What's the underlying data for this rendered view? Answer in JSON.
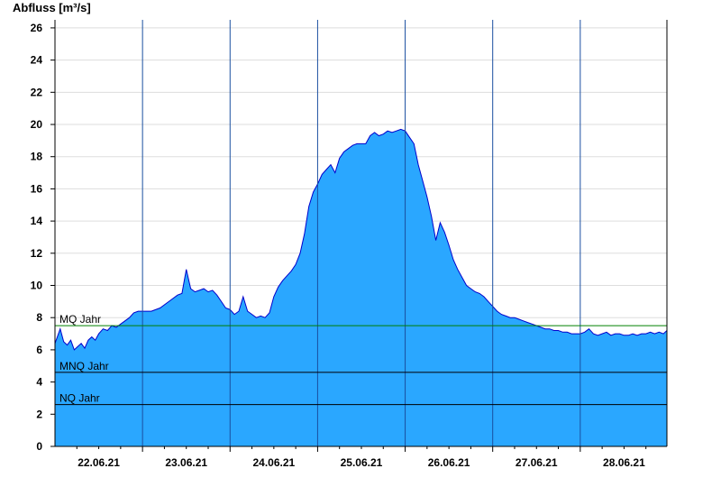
{
  "chart_data": {
    "type": "area",
    "ylabel": "Abfluss [m³/s]",
    "ylim": [
      0,
      26.5
    ],
    "yticks": [
      0,
      2,
      4,
      6,
      8,
      10,
      12,
      14,
      16,
      18,
      20,
      22,
      24,
      26
    ],
    "xlim": [
      0,
      6.99
    ],
    "day_labels": [
      "22.06.21",
      "23.06.21",
      "24.06.21",
      "25.06.21",
      "26.06.21",
      "27.06.21",
      "28.06.21"
    ],
    "grid": true,
    "colors": {
      "fill": "#2aa7ff",
      "line": "#0000cc",
      "mq": "#008000",
      "ref": "#000000",
      "grid": "#dddddd",
      "divider": "#1a4fa0"
    },
    "reference_lines": [
      {
        "name": "MQ Jahr",
        "value": 7.5,
        "color": "#008000"
      },
      {
        "name": "MNQ Jahr",
        "value": 4.6,
        "color": "#000000"
      },
      {
        "name": "NQ Jahr",
        "value": 2.6,
        "color": "#000000"
      }
    ],
    "series": [
      {
        "x": [
          0.0,
          0.06,
          0.1,
          0.14,
          0.18,
          0.22,
          0.26,
          0.3,
          0.34,
          0.38,
          0.42,
          0.46,
          0.5,
          0.55,
          0.6,
          0.65,
          0.7,
          0.75,
          0.8,
          0.85,
          0.9,
          0.95,
          1.0,
          1.1,
          1.2,
          1.3,
          1.4,
          1.45,
          1.5,
          1.55,
          1.6,
          1.65,
          1.7,
          1.75,
          1.8,
          1.85,
          1.9,
          1.95,
          2.0,
          2.05,
          2.1,
          2.15,
          2.2,
          2.25,
          2.3,
          2.35,
          2.4,
          2.45,
          2.5,
          2.55,
          2.6,
          2.65,
          2.7,
          2.75,
          2.8,
          2.85,
          2.9,
          2.95,
          3.0,
          3.05,
          3.1,
          3.15,
          3.2,
          3.25,
          3.3,
          3.35,
          3.4,
          3.45,
          3.5,
          3.55,
          3.6,
          3.65,
          3.7,
          3.75,
          3.8,
          3.85,
          3.9,
          3.95,
          4.0,
          4.05,
          4.1,
          4.15,
          4.2,
          4.25,
          4.3,
          4.35,
          4.4,
          4.45,
          4.5,
          4.55,
          4.6,
          4.65,
          4.7,
          4.75,
          4.8,
          4.85,
          4.9,
          4.95,
          5.0,
          5.05,
          5.1,
          5.15,
          5.2,
          5.25,
          5.3,
          5.35,
          5.4,
          5.45,
          5.5,
          5.55,
          5.6,
          5.65,
          5.7,
          5.75,
          5.8,
          5.85,
          5.9,
          5.95,
          6.0,
          6.05,
          6.1,
          6.15,
          6.2,
          6.25,
          6.3,
          6.35,
          6.4,
          6.45,
          6.5,
          6.55,
          6.6,
          6.65,
          6.7,
          6.75,
          6.8,
          6.85,
          6.9,
          6.95,
          6.99
        ],
        "values": [
          6.4,
          7.3,
          6.5,
          6.3,
          6.6,
          6.0,
          6.2,
          6.4,
          6.1,
          6.6,
          6.8,
          6.6,
          7.0,
          7.3,
          7.2,
          7.5,
          7.4,
          7.6,
          7.8,
          8.0,
          8.3,
          8.4,
          8.4,
          8.4,
          8.6,
          9.0,
          9.4,
          9.5,
          11.0,
          9.8,
          9.6,
          9.7,
          9.8,
          9.6,
          9.7,
          9.4,
          9.0,
          8.6,
          8.5,
          8.2,
          8.4,
          9.3,
          8.4,
          8.2,
          8.0,
          8.1,
          8.0,
          8.3,
          9.3,
          9.9,
          10.3,
          10.6,
          10.9,
          11.3,
          12.0,
          13.2,
          14.9,
          15.8,
          16.3,
          16.9,
          17.2,
          17.5,
          17.0,
          17.9,
          18.3,
          18.5,
          18.7,
          18.8,
          18.8,
          18.8,
          19.3,
          19.5,
          19.3,
          19.4,
          19.6,
          19.5,
          19.6,
          19.7,
          19.6,
          19.2,
          18.8,
          17.5,
          16.5,
          15.5,
          14.3,
          12.8,
          13.9,
          13.3,
          12.5,
          11.6,
          11.0,
          10.5,
          10.0,
          9.8,
          9.6,
          9.5,
          9.3,
          9.0,
          8.7,
          8.4,
          8.2,
          8.1,
          8.0,
          8.0,
          7.9,
          7.8,
          7.7,
          7.6,
          7.5,
          7.4,
          7.3,
          7.3,
          7.2,
          7.2,
          7.1,
          7.1,
          7.0,
          7.0,
          7.0,
          7.1,
          7.3,
          7.0,
          6.9,
          7.0,
          7.1,
          6.9,
          7.0,
          7.0,
          6.9,
          6.9,
          7.0,
          6.9,
          7.0,
          7.0,
          7.1,
          7.0,
          7.1,
          7.0,
          7.2
        ]
      }
    ]
  }
}
